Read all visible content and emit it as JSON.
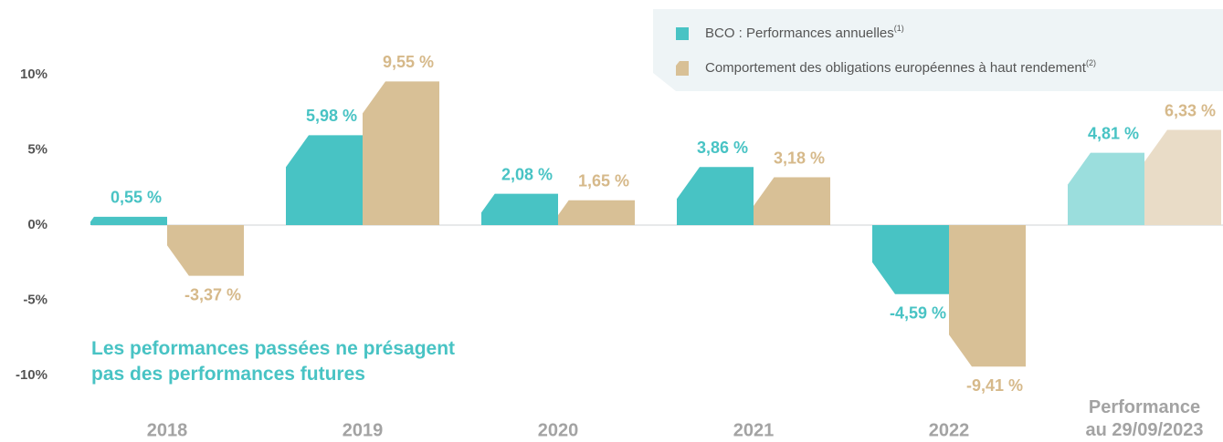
{
  "chart_data": {
    "type": "bar",
    "categories": [
      "2018",
      "2019",
      "2020",
      "2021",
      "2022",
      "Performance au 29/09/2023"
    ],
    "series": [
      {
        "name": "BCO : Performances annuelles",
        "note": "(1)",
        "color": "#48c3c4",
        "label_color": "#48c3c4",
        "colors": [
          "#48c3c4",
          "#48c3c4",
          "#48c3c4",
          "#48c3c4",
          "#48c3c4",
          "#9bdedd"
        ],
        "values": [
          0.55,
          5.98,
          2.08,
          3.86,
          -4.59,
          4.81
        ],
        "value_labels": [
          "0,55 %",
          "5,98 %",
          "2,08 %",
          "3,86 %",
          "-4,59 %",
          "4,81 %"
        ]
      },
      {
        "name": "Comportement des obligations européennes à haut rendement",
        "note": "(2)",
        "color": "#d8c096",
        "label_color": "#d6b98a",
        "colors": [
          "#d8c096",
          "#d8c096",
          "#d8c096",
          "#d8c096",
          "#d8c096",
          "#e9dcc7"
        ],
        "values": [
          -3.37,
          9.55,
          1.65,
          3.18,
          -9.41,
          6.33
        ],
        "value_labels": [
          "-3,37 %",
          "9,55 %",
          "1,65 %",
          "3,18 %",
          "-9,41 %",
          "6,33 %"
        ]
      }
    ],
    "ylim": [
      -12,
      12
    ],
    "yticks": [
      {
        "value": 10,
        "label": "10%"
      },
      {
        "value": 5,
        "label": "5%"
      },
      {
        "value": 0,
        "label": "0%"
      },
      {
        "value": -5,
        "label": "-5%"
      },
      {
        "value": -10,
        "label": "-10%"
      }
    ],
    "annotation": [
      "Les peformances passées ne présagent",
      "pas des performances futures"
    ],
    "legend": "top-right"
  }
}
